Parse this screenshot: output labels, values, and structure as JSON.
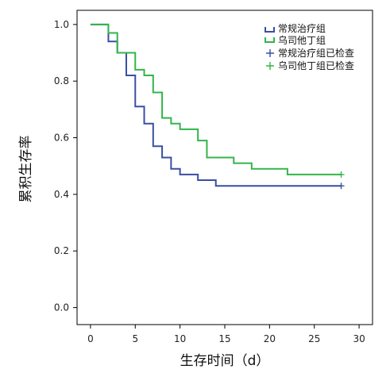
{
  "chart_data": {
    "type": "line",
    "step": true,
    "xlabel": "生存时间（d）",
    "ylabel": "累积生存率",
    "xlim": [
      -1.5,
      31.5
    ],
    "ylim": [
      -0.06,
      1.05
    ],
    "xticks": [
      0,
      5,
      10,
      15,
      20,
      25,
      30
    ],
    "yticks": [
      0.0,
      0.2,
      0.4,
      0.6,
      0.8,
      1.0
    ],
    "xtick_labels": [
      "0",
      "5",
      "10",
      "15",
      "20",
      "25",
      "30"
    ],
    "ytick_labels": [
      "0.0",
      "0.2",
      "0.4",
      "0.6",
      "0.8",
      "1.0"
    ],
    "legend_position": "top-right",
    "series": [
      {
        "name": "常规治疗组",
        "color": "#3a4fa3",
        "x": [
          0,
          2,
          3,
          4,
          5,
          6,
          7,
          8,
          9,
          10,
          12,
          14,
          28
        ],
        "y": [
          1.0,
          0.94,
          0.9,
          0.82,
          0.71,
          0.65,
          0.57,
          0.53,
          0.49,
          0.47,
          0.45,
          0.43,
          0.43
        ]
      },
      {
        "name": "乌司他丁组",
        "color": "#33b54a",
        "x": [
          0,
          2,
          3,
          5,
          6,
          7,
          8,
          9,
          10,
          12,
          13,
          16,
          18,
          22,
          28
        ],
        "y": [
          1.0,
          0.97,
          0.9,
          0.84,
          0.82,
          0.76,
          0.67,
          0.65,
          0.63,
          0.59,
          0.53,
          0.51,
          0.49,
          0.47,
          0.47
        ]
      }
    ],
    "censored": [
      {
        "name": "常规治疗组已检查",
        "color": "#3a4fa3",
        "x": [
          28
        ],
        "y": [
          0.43
        ]
      },
      {
        "name": "乌司他丁组已检查",
        "color": "#33b54a",
        "x": [
          28
        ],
        "y": [
          0.47
        ]
      }
    ]
  }
}
